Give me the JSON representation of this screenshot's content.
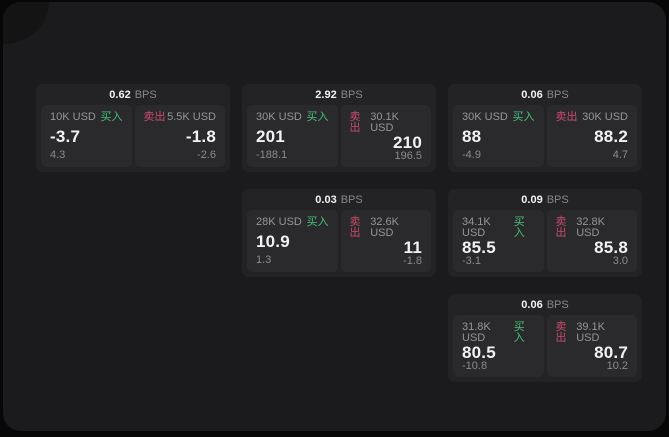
{
  "theme": {
    "page_bg": "#070708",
    "panel_bg": "#1b1b1d",
    "card_bg": "#232325",
    "tile_bg": "#2a2a2c",
    "buy_color": "#45c179",
    "sell_color": "#cc4a6b"
  },
  "labels": {
    "bps": "BPS",
    "buy": "买入",
    "sell": "卖出"
  },
  "cards": [
    {
      "bps": "0.62",
      "buy": {
        "amount": "10K USD",
        "value": "-3.7",
        "sub": "4.3"
      },
      "sell": {
        "amount": "5.5K USD",
        "value": "-1.8",
        "sub": "-2.6"
      }
    },
    {
      "bps": "2.92",
      "buy": {
        "amount": "30K USD",
        "value": "201",
        "sub": "-188.1"
      },
      "sell": {
        "amount": "30.1K USD",
        "value": "210",
        "sub": "196.5"
      }
    },
    {
      "bps": "0.06",
      "buy": {
        "amount": "30K USD",
        "value": "88",
        "sub": "-4.9"
      },
      "sell": {
        "amount": "30K USD",
        "value": "88.2",
        "sub": "4.7"
      }
    },
    {
      "bps": "0.03",
      "buy": {
        "amount": "28K USD",
        "value": "10.9",
        "sub": "1.3"
      },
      "sell": {
        "amount": "32.6K USD",
        "value": "11",
        "sub": "-1.8"
      }
    },
    {
      "bps": "0.09",
      "buy": {
        "amount": "34.1K USD",
        "value": "85.5",
        "sub": "-3.1"
      },
      "sell": {
        "amount": "32.8K USD",
        "value": "85.8",
        "sub": "3.0"
      }
    },
    {
      "bps": "0.06",
      "buy": {
        "amount": "31.8K USD",
        "value": "80.5",
        "sub": "-10.8"
      },
      "sell": {
        "amount": "39.1K USD",
        "value": "80.7",
        "sub": "10.2"
      }
    }
  ]
}
